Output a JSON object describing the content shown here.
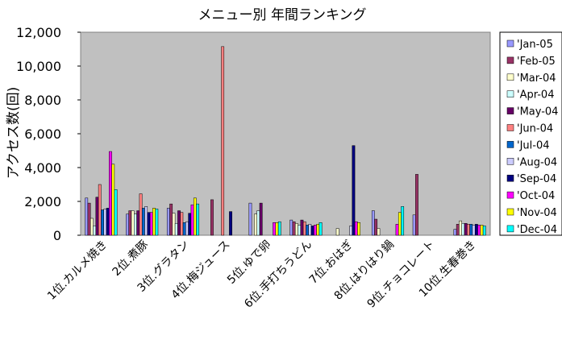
{
  "chart_data": {
    "type": "bar",
    "title": "メニュー別 年間ランキング",
    "xlabel": "",
    "ylabel": "アクセス数(回)",
    "ylim": [
      0,
      12000
    ],
    "yticks": [
      "0",
      "2,000",
      "4,000",
      "6,000",
      "8,000",
      "10,000",
      "12,000"
    ],
    "grid": false,
    "legend_position": "right",
    "plot_background": "#c0c0c0",
    "categories": [
      "1位.カルメ焼き",
      "2位.煮豚",
      "3位.グラタン",
      "4位.梅ジュース",
      "5位.ゆで卵",
      "6位.手打ちうどん",
      "7位.おはぎ",
      "8位.はりはり鍋",
      "9位.チョコレート",
      "10位.生春巻き"
    ],
    "series": [
      {
        "name": "'Jan-05",
        "color": "#9999ff",
        "values": [
          2200,
          1250,
          1600,
          0,
          1900,
          900,
          0,
          1450,
          1200,
          350
        ]
      },
      {
        "name": "'Feb-05",
        "color": "#993366",
        "values": [
          1900,
          1450,
          1850,
          2100,
          0,
          800,
          0,
          950,
          3600,
          650
        ]
      },
      {
        "name": "'Mar-04",
        "color": "#ffffcc",
        "values": [
          1000,
          1450,
          1300,
          0,
          1250,
          700,
          400,
          400,
          0,
          850
        ]
      },
      {
        "name": "'Apr-04",
        "color": "#ccffff",
        "values": [
          550,
          1250,
          700,
          0,
          1450,
          600,
          0,
          0,
          0,
          700
        ]
      },
      {
        "name": "'May-04",
        "color": "#660066",
        "values": [
          2250,
          1450,
          1450,
          0,
          1900,
          900,
          0,
          0,
          0,
          700
        ]
      },
      {
        "name": "'Jun-04",
        "color": "#ff8080",
        "values": [
          3000,
          2450,
          1350,
          11150,
          0,
          800,
          0,
          0,
          0,
          650
        ]
      },
      {
        "name": "'Jul-04",
        "color": "#0066cc",
        "values": [
          1500,
          1600,
          750,
          0,
          0,
          600,
          0,
          0,
          0,
          650
        ]
      },
      {
        "name": "'Aug-04",
        "color": "#ccccff",
        "values": [
          1550,
          1700,
          800,
          0,
          0,
          650,
          550,
          0,
          0,
          600
        ]
      },
      {
        "name": "'Sep-04",
        "color": "#000080",
        "values": [
          1600,
          1350,
          1300,
          1400,
          0,
          550,
          5300,
          0,
          0,
          650
        ]
      },
      {
        "name": "'Oct-04",
        "color": "#ff00ff",
        "values": [
          4950,
          1350,
          1800,
          0,
          750,
          600,
          800,
          650,
          0,
          600
        ]
      },
      {
        "name": "'Nov-04",
        "color": "#ffff00",
        "values": [
          4200,
          1600,
          2200,
          0,
          750,
          650,
          750,
          1350,
          0,
          600
        ]
      },
      {
        "name": "'Dec-04",
        "color": "#00ffff",
        "values": [
          2700,
          1550,
          1850,
          0,
          800,
          750,
          0,
          1700,
          0,
          550
        ]
      }
    ]
  }
}
